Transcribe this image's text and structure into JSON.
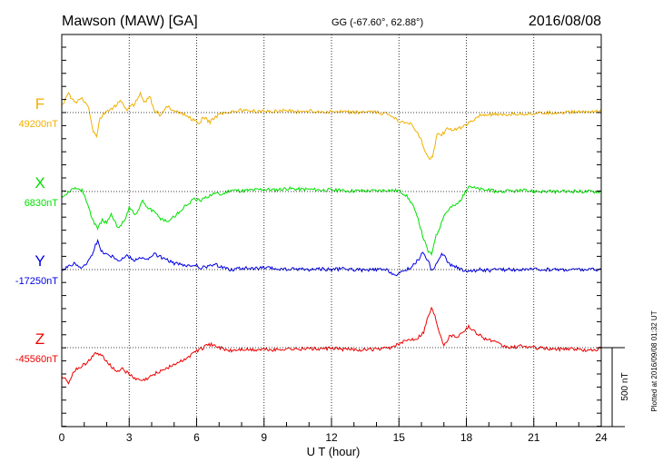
{
  "header": {
    "station": "Mawson (MAW)  [GA]",
    "coords": "GG (-67.60°,  62.88°)",
    "date": "2016/08/08"
  },
  "chart_data": {
    "type": "line",
    "xlabel": "U T (hour)",
    "xlim": [
      0,
      24
    ],
    "xticks": [
      "0",
      "3",
      "6",
      "9",
      "12",
      "15",
      "18",
      "21",
      "24"
    ],
    "scale_bar": "500 nT",
    "plotted_note": "Plotted at 2016/09/08 01:32 UT",
    "colors": {
      "F": "#f0b000",
      "X": "#00e000",
      "Y": "#0000e6",
      "Z": "#ee0000"
    },
    "series": [
      {
        "name": "F",
        "baseline": "49200nT",
        "points": [
          [
            0,
            40
          ],
          [
            0.3,
            120
          ],
          [
            0.6,
            60
          ],
          [
            0.9,
            90
          ],
          [
            1.2,
            30
          ],
          [
            1.4,
            -120
          ],
          [
            1.55,
            -150
          ],
          [
            1.7,
            -40
          ],
          [
            2.0,
            10
          ],
          [
            2.3,
            30
          ],
          [
            2.6,
            70
          ],
          [
            2.9,
            20
          ],
          [
            3.2,
            50
          ],
          [
            3.5,
            120
          ],
          [
            3.7,
            60
          ],
          [
            3.9,
            110
          ],
          [
            4.1,
            20
          ],
          [
            4.4,
            -20
          ],
          [
            4.7,
            40
          ],
          [
            5.0,
            15
          ],
          [
            5.4,
            -10
          ],
          [
            5.8,
            -40
          ],
          [
            6.1,
            -70
          ],
          [
            6.3,
            -30
          ],
          [
            6.6,
            -60
          ],
          [
            6.9,
            -20
          ],
          [
            7.2,
            0
          ],
          [
            7.6,
            5
          ],
          [
            8.0,
            15
          ],
          [
            8.5,
            10
          ],
          [
            9.0,
            5
          ],
          [
            9.5,
            10
          ],
          [
            10.0,
            15
          ],
          [
            10.5,
            5
          ],
          [
            11.0,
            10
          ],
          [
            11.5,
            5
          ],
          [
            12.0,
            5
          ],
          [
            12.5,
            3
          ],
          [
            13.0,
            0
          ],
          [
            13.5,
            5
          ],
          [
            14.0,
            0
          ],
          [
            14.5,
            -10
          ],
          [
            14.8,
            -30
          ],
          [
            15.1,
            -60
          ],
          [
            15.4,
            -60
          ],
          [
            15.7,
            -100
          ],
          [
            16.0,
            -180
          ],
          [
            16.2,
            -260
          ],
          [
            16.35,
            -300
          ],
          [
            16.5,
            -270
          ],
          [
            16.7,
            -140
          ],
          [
            16.9,
            -140
          ],
          [
            17.2,
            -100
          ],
          [
            17.5,
            -110
          ],
          [
            17.8,
            -90
          ],
          [
            18.2,
            -60
          ],
          [
            18.6,
            -20
          ],
          [
            19.0,
            -10
          ],
          [
            19.5,
            -20
          ],
          [
            20.0,
            -10
          ],
          [
            21.0,
            -5
          ],
          [
            22.0,
            0
          ],
          [
            23.0,
            5
          ],
          [
            24.0,
            10
          ]
        ]
      },
      {
        "name": "X",
        "baseline": "6830nT",
        "points": [
          [
            0,
            -30
          ],
          [
            0.3,
            0
          ],
          [
            0.6,
            20
          ],
          [
            0.9,
            10
          ],
          [
            1.1,
            -60
          ],
          [
            1.3,
            -150
          ],
          [
            1.45,
            -200
          ],
          [
            1.6,
            -240
          ],
          [
            1.8,
            -180
          ],
          [
            2.0,
            -200
          ],
          [
            2.2,
            -150
          ],
          [
            2.5,
            -230
          ],
          [
            2.8,
            -180
          ],
          [
            3.0,
            -100
          ],
          [
            3.3,
            -150
          ],
          [
            3.6,
            -60
          ],
          [
            3.8,
            -100
          ],
          [
            4.1,
            -130
          ],
          [
            4.4,
            -170
          ],
          [
            4.7,
            -190
          ],
          [
            5.0,
            -160
          ],
          [
            5.3,
            -120
          ],
          [
            5.6,
            -80
          ],
          [
            5.9,
            -50
          ],
          [
            6.2,
            -60
          ],
          [
            6.5,
            -30
          ],
          [
            6.8,
            -10
          ],
          [
            7.1,
            -20
          ],
          [
            7.5,
            10
          ],
          [
            8.0,
            5
          ],
          [
            8.5,
            10
          ],
          [
            9.0,
            15
          ],
          [
            9.5,
            10
          ],
          [
            10.0,
            20
          ],
          [
            10.5,
            15
          ],
          [
            11.0,
            15
          ],
          [
            11.5,
            10
          ],
          [
            12.0,
            10
          ],
          [
            12.5,
            5
          ],
          [
            13.0,
            5
          ],
          [
            13.5,
            5
          ],
          [
            14.0,
            5
          ],
          [
            14.5,
            10
          ],
          [
            15.0,
            5
          ],
          [
            15.3,
            -20
          ],
          [
            15.6,
            -80
          ],
          [
            15.9,
            -200
          ],
          [
            16.1,
            -300
          ],
          [
            16.3,
            -380
          ],
          [
            16.45,
            -400
          ],
          [
            16.6,
            -300
          ],
          [
            16.8,
            -230
          ],
          [
            17.0,
            -150
          ],
          [
            17.3,
            -100
          ],
          [
            17.6,
            -80
          ],
          [
            17.9,
            -20
          ],
          [
            18.1,
            40
          ],
          [
            18.4,
            20
          ],
          [
            18.8,
            10
          ],
          [
            19.5,
            0
          ],
          [
            20.5,
            5
          ],
          [
            21.5,
            0
          ],
          [
            22.5,
            0
          ],
          [
            24.0,
            0
          ]
        ]
      },
      {
        "name": "Y",
        "baseline": "-17250nT",
        "points": [
          [
            0,
            0
          ],
          [
            0.3,
            20
          ],
          [
            0.6,
            40
          ],
          [
            0.9,
            10
          ],
          [
            1.1,
            40
          ],
          [
            1.3,
            80
          ],
          [
            1.45,
            140
          ],
          [
            1.6,
            180
          ],
          [
            1.75,
            120
          ],
          [
            2.0,
            100
          ],
          [
            2.3,
            80
          ],
          [
            2.6,
            60
          ],
          [
            2.9,
            90
          ],
          [
            3.2,
            60
          ],
          [
            3.5,
            80
          ],
          [
            3.8,
            60
          ],
          [
            4.1,
            100
          ],
          [
            4.4,
            80
          ],
          [
            4.7,
            60
          ],
          [
            5.0,
            40
          ],
          [
            5.3,
            30
          ],
          [
            5.6,
            20
          ],
          [
            5.9,
            30
          ],
          [
            6.2,
            10
          ],
          [
            6.5,
            20
          ],
          [
            6.8,
            30
          ],
          [
            7.1,
            20
          ],
          [
            7.5,
            0
          ],
          [
            8.0,
            10
          ],
          [
            8.5,
            5
          ],
          [
            9.0,
            10
          ],
          [
            9.5,
            5
          ],
          [
            10.0,
            0
          ],
          [
            10.5,
            5
          ],
          [
            11.0,
            0
          ],
          [
            11.5,
            5
          ],
          [
            12.0,
            0
          ],
          [
            12.5,
            5
          ],
          [
            13.0,
            0
          ],
          [
            13.5,
            -5
          ],
          [
            14.0,
            0
          ],
          [
            14.5,
            -5
          ],
          [
            14.9,
            -40
          ],
          [
            15.2,
            -10
          ],
          [
            15.6,
            20
          ],
          [
            15.9,
            70
          ],
          [
            16.1,
            110
          ],
          [
            16.3,
            50
          ],
          [
            16.5,
            -10
          ],
          [
            16.8,
            80
          ],
          [
            16.95,
            100
          ],
          [
            17.2,
            40
          ],
          [
            17.6,
            10
          ],
          [
            17.9,
            -5
          ],
          [
            18.2,
            -10
          ],
          [
            18.6,
            0
          ],
          [
            19.0,
            -5
          ],
          [
            19.5,
            0
          ],
          [
            20.5,
            0
          ],
          [
            21.5,
            0
          ],
          [
            22.5,
            0
          ],
          [
            24.0,
            0
          ]
        ]
      },
      {
        "name": "Z",
        "baseline": "-45560nT",
        "points": [
          [
            0,
            -180
          ],
          [
            0.3,
            -220
          ],
          [
            0.6,
            -140
          ],
          [
            0.9,
            -120
          ],
          [
            1.2,
            -80
          ],
          [
            1.5,
            -40
          ],
          [
            1.8,
            -50
          ],
          [
            2.1,
            -100
          ],
          [
            2.4,
            -150
          ],
          [
            2.7,
            -130
          ],
          [
            3.0,
            -170
          ],
          [
            3.3,
            -200
          ],
          [
            3.6,
            -210
          ],
          [
            3.9,
            -190
          ],
          [
            4.2,
            -160
          ],
          [
            4.5,
            -140
          ],
          [
            4.8,
            -120
          ],
          [
            5.1,
            -100
          ],
          [
            5.4,
            -80
          ],
          [
            5.7,
            -50
          ],
          [
            6.0,
            -20
          ],
          [
            6.3,
            0
          ],
          [
            6.6,
            20
          ],
          [
            6.9,
            10
          ],
          [
            7.2,
            -10
          ],
          [
            7.5,
            -20
          ],
          [
            8.0,
            -10
          ],
          [
            8.5,
            -15
          ],
          [
            9.0,
            -10
          ],
          [
            9.5,
            -15
          ],
          [
            10.0,
            -5
          ],
          [
            10.5,
            -10
          ],
          [
            11.0,
            -5
          ],
          [
            11.5,
            -10
          ],
          [
            12.0,
            -5
          ],
          [
            12.5,
            -10
          ],
          [
            13.0,
            -10
          ],
          [
            13.5,
            -15
          ],
          [
            14.0,
            -10
          ],
          [
            14.5,
            -5
          ],
          [
            15.0,
            20
          ],
          [
            15.4,
            50
          ],
          [
            15.8,
            60
          ],
          [
            16.1,
            100
          ],
          [
            16.3,
            200
          ],
          [
            16.45,
            250
          ],
          [
            16.6,
            200
          ],
          [
            16.8,
            100
          ],
          [
            17.0,
            20
          ],
          [
            17.3,
            80
          ],
          [
            17.6,
            70
          ],
          [
            17.9,
            110
          ],
          [
            18.1,
            130
          ],
          [
            18.4,
            100
          ],
          [
            18.8,
            60
          ],
          [
            19.2,
            40
          ],
          [
            19.6,
            10
          ],
          [
            20.0,
            0
          ],
          [
            20.5,
            10
          ],
          [
            21.0,
            0
          ],
          [
            21.5,
            -5
          ],
          [
            22.0,
            -10
          ],
          [
            22.5,
            -5
          ],
          [
            23.0,
            -10
          ],
          [
            23.4,
            -20
          ],
          [
            23.8,
            -10
          ],
          [
            24.0,
            -5
          ]
        ]
      }
    ]
  }
}
